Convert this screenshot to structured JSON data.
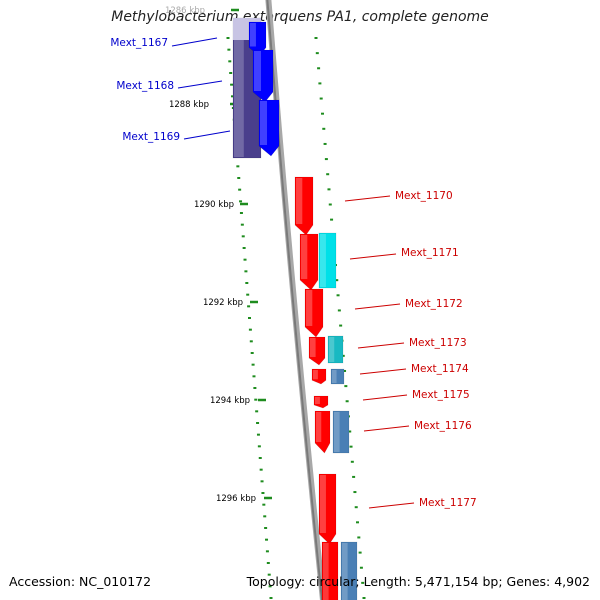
{
  "title": "Methylobacterium extorquens PA1, complete genome",
  "footer": {
    "accession": "Accession: NC_010172",
    "summary": "Topology: circular; Length: 5,471,154 bp; Genes: 4,902"
  },
  "colors": {
    "backbone": "#8c8c8c",
    "tick": "#1e8c1e",
    "label_blue": "#0000cc",
    "label_red": "#cc0000",
    "gene_blue": "#0000ff",
    "gene_navy": "#4a3f8c",
    "gene_red": "#ff0000",
    "gene_cyan": "#00e0e8",
    "gene_steel": "#4a7fb5"
  },
  "position_labels": [
    "1286 kbp",
    "1288 kbp",
    "1290 kbp",
    "1292 kbp",
    "1294 kbp",
    "1296 kbp"
  ],
  "genes": [
    {
      "label": "Mext_1167",
      "side": "left",
      "tone": "blue"
    },
    {
      "label": "Mext_1168",
      "side": "left",
      "tone": "blue"
    },
    {
      "label": "Mext_1169",
      "side": "left",
      "tone": "blue"
    },
    {
      "label": "Mext_1170",
      "side": "right",
      "tone": "red"
    },
    {
      "label": "Mext_1171",
      "side": "right",
      "tone": "red"
    },
    {
      "label": "Mext_1172",
      "side": "right",
      "tone": "red"
    },
    {
      "label": "Mext_1173",
      "side": "right",
      "tone": "red"
    },
    {
      "label": "Mext_1174",
      "side": "right",
      "tone": "red"
    },
    {
      "label": "Mext_1175",
      "side": "right",
      "tone": "red"
    },
    {
      "label": "Mext_1176",
      "side": "right",
      "tone": "red"
    },
    {
      "label": "Mext_1177",
      "side": "right",
      "tone": "red"
    }
  ]
}
